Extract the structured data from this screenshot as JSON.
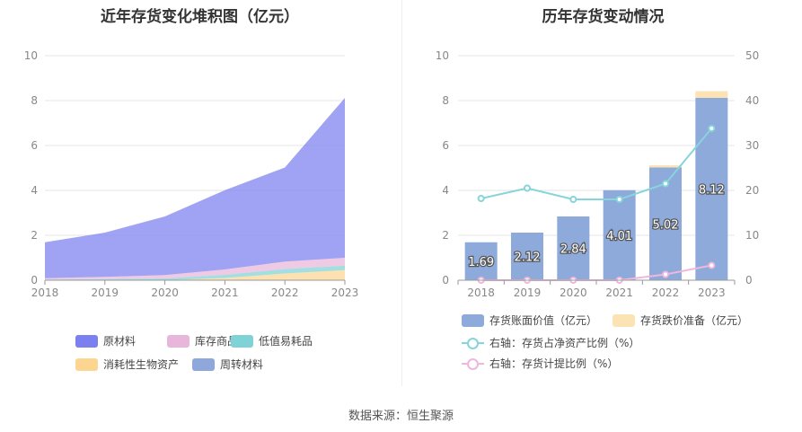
{
  "source": "数据来源：恒生聚源",
  "chart_data": [
    {
      "type": "area",
      "title": "近年存货变化堆积图（亿元）",
      "categories": [
        "2018",
        "2019",
        "2020",
        "2021",
        "2022",
        "2023"
      ],
      "y_ticks": [
        "0",
        "2",
        "4",
        "6",
        "8",
        "10"
      ],
      "ylim": [
        0,
        10
      ],
      "stacked": true,
      "series": [
        {
          "name": "消耗性生物资产",
          "color": "#fcd691",
          "values": [
            0.0,
            0.0,
            0.0,
            0.1,
            0.3,
            0.45
          ]
        },
        {
          "name": "低值易耗品",
          "color": "#7fd3d6",
          "values": [
            0.03,
            0.05,
            0.08,
            0.14,
            0.2,
            0.2
          ]
        },
        {
          "name": "库存商品",
          "color": "#e8b5db",
          "values": [
            0.06,
            0.1,
            0.15,
            0.24,
            0.33,
            0.35
          ]
        },
        {
          "name": "原材料",
          "color": "#7b7ff0",
          "values": [
            1.6,
            1.97,
            2.61,
            3.53,
            4.19,
            7.12
          ]
        },
        {
          "name": "周转材料",
          "color": "#8fa8db",
          "values": [
            0.0,
            0.0,
            0.0,
            0.0,
            0.0,
            0.0
          ]
        }
      ],
      "legend": [
        {
          "name": "原材料",
          "color": "#7b7ff0"
        },
        {
          "name": "库存商品",
          "color": "#e8b5db"
        },
        {
          "name": "低值易耗品",
          "color": "#7fd3d6"
        },
        {
          "name": "消耗性生物资产",
          "color": "#fcd691"
        },
        {
          "name": "周转材料",
          "color": "#8fa8db"
        }
      ],
      "legend_position": "bottom",
      "grid": true
    },
    {
      "type": "bar",
      "title": "历年存货变动情况",
      "categories": [
        "2018",
        "2019",
        "2020",
        "2021",
        "2022",
        "2023"
      ],
      "y_ticks_left": [
        "0",
        "2",
        "4",
        "6",
        "8",
        "10"
      ],
      "y_ticks_right": [
        "0",
        "10",
        "20",
        "30",
        "40",
        "50"
      ],
      "ylim_left": [
        0,
        10
      ],
      "ylim_right": [
        0,
        50
      ],
      "series": [
        {
          "name": "存货账面价值（亿元）",
          "type": "bar",
          "axis": "left",
          "color": "#8eaadb",
          "values": [
            1.69,
            2.12,
            2.84,
            4.01,
            5.02,
            8.12
          ],
          "labels": [
            "1.69",
            "2.12",
            "2.84",
            "4.01",
            "5.02",
            "8.12"
          ]
        },
        {
          "name": "存货跌价准备（亿元）",
          "type": "bar",
          "axis": "left",
          "color": "#fce3b4",
          "values": [
            0,
            0,
            0,
            0,
            0.1,
            0.3
          ]
        },
        {
          "name": "右轴：存货占净资产比例（%）",
          "type": "line",
          "axis": "right",
          "color": "#86d5d9",
          "values": [
            18.2,
            20.5,
            18.0,
            18.0,
            21.5,
            33.8
          ]
        },
        {
          "name": "右轴：存货计提比例（%）",
          "type": "line",
          "axis": "right",
          "color": "#edb8dc",
          "values": [
            0.0,
            0.0,
            0.0,
            0.0,
            1.3,
            3.3
          ]
        }
      ],
      "legend_position": "bottom",
      "grid": true
    }
  ]
}
